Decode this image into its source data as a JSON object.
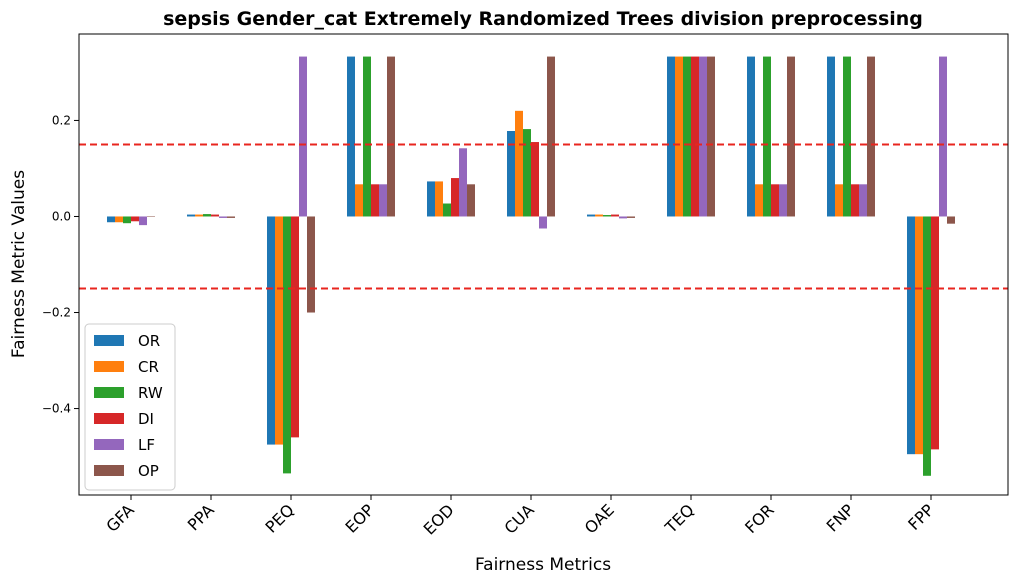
{
  "chart_data": {
    "type": "bar",
    "title": "sepsis Gender_cat Extremely Randomized Trees division preprocessing",
    "xlabel": "Fairness Metrics",
    "ylabel": "Fairness Metric Values",
    "categories": [
      "GFA",
      "PPA",
      "PEQ",
      "EOP",
      "EOD",
      "CUA",
      "OAE",
      "TEQ",
      "FOR",
      "FNP",
      "FPP"
    ],
    "ylim": [
      -0.58,
      0.38
    ],
    "yticks": [
      -0.4,
      -0.2,
      0.0,
      0.2
    ],
    "ytick_labels": [
      "−0.4",
      "−0.2",
      "0.0",
      "0.2"
    ],
    "threshold_lines": [
      0.15,
      -0.15
    ],
    "threshold_color": "#e8251f",
    "grid": false,
    "legend_position": "lower-left",
    "series": [
      {
        "name": "OR",
        "color": "#1f77b4",
        "values": [
          -0.012,
          0.004,
          -0.475,
          0.333,
          0.073,
          0.178,
          0.004,
          0.333,
          0.333,
          0.333,
          -0.495
        ]
      },
      {
        "name": "CR",
        "color": "#ff7f0e",
        "values": [
          -0.012,
          0.004,
          -0.475,
          0.067,
          0.073,
          0.22,
          0.004,
          0.333,
          0.067,
          0.067,
          -0.495
        ]
      },
      {
        "name": "RW",
        "color": "#2ca02c",
        "values": [
          -0.014,
          0.005,
          -0.535,
          0.333,
          0.027,
          0.182,
          0.003,
          0.333,
          0.333,
          0.333,
          -0.54
        ]
      },
      {
        "name": "DI",
        "color": "#d62728",
        "values": [
          -0.01,
          0.004,
          -0.46,
          0.067,
          0.08,
          0.155,
          0.004,
          0.333,
          0.067,
          0.067,
          -0.485
        ]
      },
      {
        "name": "LF",
        "color": "#9467bd",
        "values": [
          -0.018,
          -0.003,
          0.333,
          0.067,
          0.142,
          -0.025,
          -0.004,
          0.333,
          0.067,
          0.067,
          0.333
        ]
      },
      {
        "name": "OP",
        "color": "#8c564b",
        "values": [
          0.0,
          -0.003,
          -0.2,
          0.333,
          0.067,
          0.333,
          -0.003,
          0.333,
          0.333,
          0.333,
          -0.015
        ]
      }
    ]
  }
}
